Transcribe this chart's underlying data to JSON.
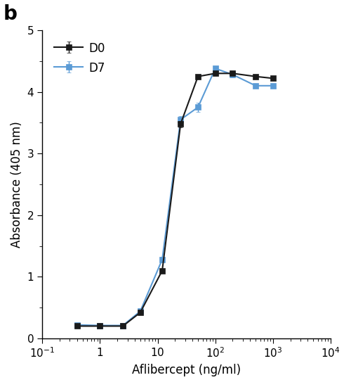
{
  "title_label": "b",
  "xlabel": "Aflibercept (ng/ml)",
  "ylabel": "Absorbance (405 nm)",
  "xlim": [
    0.1,
    10000
  ],
  "ylim": [
    0,
    5
  ],
  "yticks": [
    0,
    1,
    2,
    3,
    4,
    5
  ],
  "D0_x": [
    0.4,
    1.0,
    2.5,
    5.0,
    12.0,
    25.0,
    50.0,
    100.0,
    200.0,
    500.0,
    1000.0
  ],
  "D0_y": [
    0.2,
    0.2,
    0.2,
    0.42,
    1.1,
    3.48,
    4.25,
    4.3,
    4.3,
    4.25,
    4.22
  ],
  "D0_err": [
    0.01,
    0.01,
    0.01,
    0.02,
    0.03,
    0.05,
    0.03,
    0.03,
    0.03,
    0.03,
    0.03
  ],
  "D7_x": [
    0.4,
    1.0,
    2.5,
    5.0,
    12.0,
    25.0,
    50.0,
    100.0,
    200.0,
    500.0,
    1000.0
  ],
  "D7_y": [
    0.22,
    0.21,
    0.21,
    0.44,
    1.28,
    3.55,
    3.75,
    4.38,
    4.28,
    4.1,
    4.1
  ],
  "D7_err": [
    0.01,
    0.01,
    0.01,
    0.02,
    0.04,
    0.06,
    0.07,
    0.04,
    0.04,
    0.03,
    0.03
  ],
  "D0_color": "#1a1a1a",
  "D7_color": "#5b9bd5",
  "D0_label": "D0",
  "D7_label": "D7",
  "line_width": 1.5,
  "marker_size": 6,
  "background_color": "#ffffff",
  "capsize": 2
}
